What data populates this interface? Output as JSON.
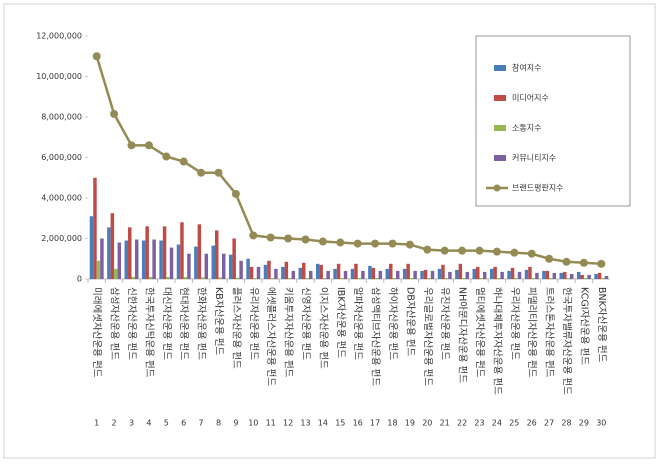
{
  "chart_data": {
    "type": "bar",
    "categories": [
      "미래에셋자산운용 펀드",
      "삼성자산운용 펀드",
      "신한자산운용 펀드",
      "한국투자신탁운용 펀드",
      "대신자산운용 펀드",
      "현대자산운용 펀드",
      "한화자산운용 펀드",
      "KB자산운용 펀드",
      "플러스자산운용 펀드",
      "유리자산운용 펀드",
      "에셋플러스자산운용 펀드",
      "키움투자자산운용 펀드",
      "신영자산운용 펀드",
      "이지스자산운용 펀드",
      "IBK자산운용 펀드",
      "알파자산운용 펀드",
      "삼성액티브자산운용 펀드",
      "하이자산운용 펀드",
      "DB자산운용 펀드",
      "우리글로벌자산운용 펀드",
      "유진자산운용 펀드",
      "NH아문디자산운용 펀드",
      "멀티에셋자산운용 펀드",
      "하나대체투자자산운용 펀드",
      "우리자산운용 펀드",
      "피델리티자산운용 펀드",
      "트러스톤자산운용 펀드",
      "한국투자밸류자산운용 펀드",
      "KCGI자산운용 펀드",
      "BNK자산운용 펀드"
    ],
    "ranks": [
      1,
      2,
      3,
      4,
      5,
      6,
      7,
      8,
      9,
      10,
      11,
      12,
      13,
      14,
      15,
      16,
      17,
      18,
      19,
      20,
      21,
      22,
      23,
      24,
      25,
      26,
      27,
      28,
      29,
      30
    ],
    "series": [
      {
        "name": "참여지수",
        "color": "#4a7ebb",
        "values": [
          3100000,
          2550000,
          1900000,
          1900000,
          1900000,
          1700000,
          1600000,
          1650000,
          1200000,
          1000000,
          700000,
          600000,
          550000,
          750000,
          500000,
          500000,
          650000,
          500000,
          500000,
          400000,
          500000,
          450000,
          500000,
          500000,
          400000,
          450000,
          400000,
          300000,
          350000,
          250000
        ]
      },
      {
        "name": "미디어지수",
        "color": "#be4b48",
        "values": [
          5000000,
          3250000,
          2550000,
          2600000,
          2600000,
          2800000,
          2700000,
          2400000,
          2000000,
          600000,
          900000,
          850000,
          800000,
          700000,
          750000,
          750000,
          550000,
          750000,
          750000,
          450000,
          700000,
          750000,
          600000,
          600000,
          550000,
          600000,
          400000,
          350000,
          200000,
          300000
        ]
      },
      {
        "name": "소통지수",
        "color": "#98b954",
        "values": [
          900000,
          500000,
          100000,
          100000,
          100000,
          100000,
          80000,
          80000,
          60000,
          50000,
          50000,
          50000,
          50000,
          50000,
          50000,
          50000,
          50000,
          50000,
          50000,
          50000,
          50000,
          50000,
          50000,
          50000,
          50000,
          50000,
          50000,
          50000,
          50000,
          50000
        ]
      },
      {
        "name": "커뮤니티지수",
        "color": "#7d60a0",
        "values": [
          2000000,
          1800000,
          1950000,
          1950000,
          1550000,
          1250000,
          1250000,
          1250000,
          900000,
          600000,
          500000,
          400000,
          400000,
          400000,
          400000,
          400000,
          400000,
          400000,
          400000,
          400000,
          350000,
          350000,
          350000,
          350000,
          350000,
          300000,
          300000,
          250000,
          200000,
          150000
        ]
      },
      {
        "name": "브랜드평판지수",
        "type": "line",
        "color": "#948a54",
        "values": [
          11000000,
          8150000,
          6600000,
          6600000,
          6050000,
          5800000,
          5250000,
          5250000,
          4200000,
          2150000,
          2050000,
          2000000,
          1950000,
          1850000,
          1800000,
          1750000,
          1750000,
          1750000,
          1700000,
          1450000,
          1400000,
          1400000,
          1400000,
          1350000,
          1300000,
          1250000,
          1000000,
          850000,
          800000,
          750000
        ]
      }
    ],
    "ylim": [
      0,
      12000000
    ],
    "yticks": [
      0,
      {
        "value": 2000000,
        "label": "2,000,000"
      },
      {
        "value": 4000000,
        "label": "4,000,000"
      },
      {
        "value": 6000000,
        "label": "6,000,000"
      },
      {
        "value": 8000000,
        "label": "8,000,000"
      },
      {
        "value": 10000000,
        "label": "10,000,000"
      },
      {
        "value": 12000000,
        "label": "12,000,000"
      }
    ],
    "grid": false,
    "legend": "upper right"
  }
}
